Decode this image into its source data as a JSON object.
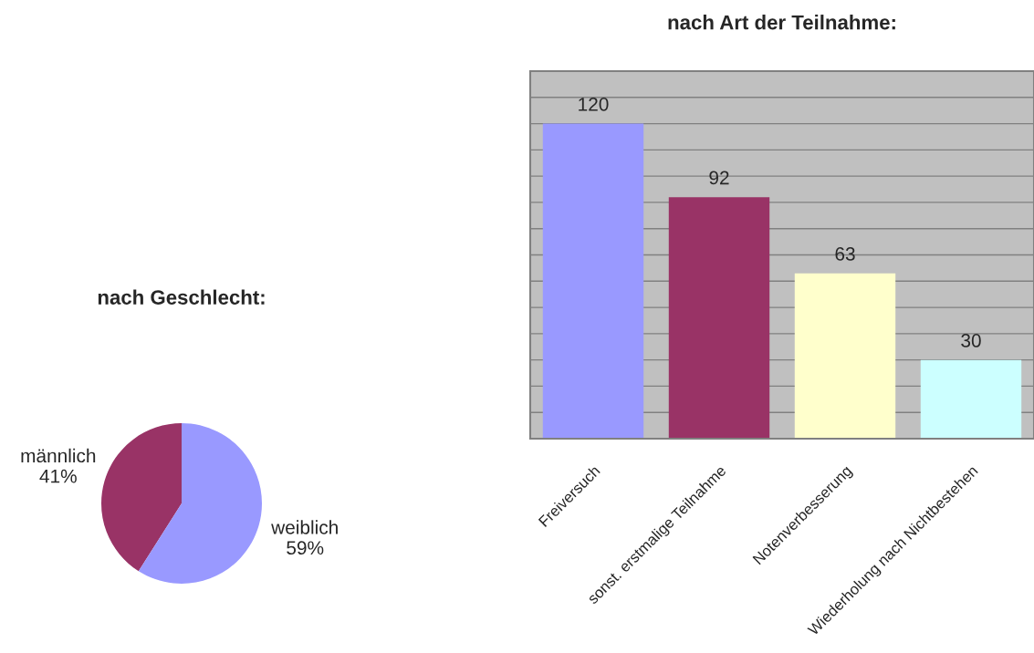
{
  "chart_data": [
    {
      "type": "pie",
      "title": "nach Geschlecht:",
      "categories": [
        "männlich",
        "weiblich"
      ],
      "values": [
        41,
        59
      ],
      "value_labels": [
        "41%",
        "59%"
      ],
      "colors": [
        "#993366",
        "#9999ff"
      ]
    },
    {
      "type": "bar",
      "title": "nach Art der Teilnahme:",
      "categories": [
        "Freiversuch",
        "sonst. erstmalige Teilnahme",
        "Notenverbesserung",
        "Wiederholung nach Nichtbestehen"
      ],
      "values": [
        120,
        92,
        63,
        30
      ],
      "colors": [
        "#9999ff",
        "#993366",
        "#ffffcc",
        "#ccffff"
      ],
      "ylim": [
        0,
        140
      ],
      "yticks": [
        {
          "value": 0,
          "label": null
        },
        {
          "value": 10,
          "label": null
        },
        {
          "value": 20,
          "label": null
        },
        {
          "value": 30,
          "label": null
        },
        {
          "value": 40,
          "label": null
        },
        {
          "value": 50,
          "label": null
        },
        {
          "value": 60,
          "label": null
        },
        {
          "value": 70,
          "label": null
        },
        {
          "value": 80,
          "label": null
        },
        {
          "value": 90,
          "label": null
        },
        {
          "value": 100,
          "label": null
        },
        {
          "value": 110,
          "label": null
        },
        {
          "value": 120,
          "label": null
        },
        {
          "value": 130,
          "label": null
        },
        {
          "value": 140,
          "label": null
        }
      ],
      "grid": "y",
      "tick_labels": "x",
      "data_labels": true
    }
  ]
}
